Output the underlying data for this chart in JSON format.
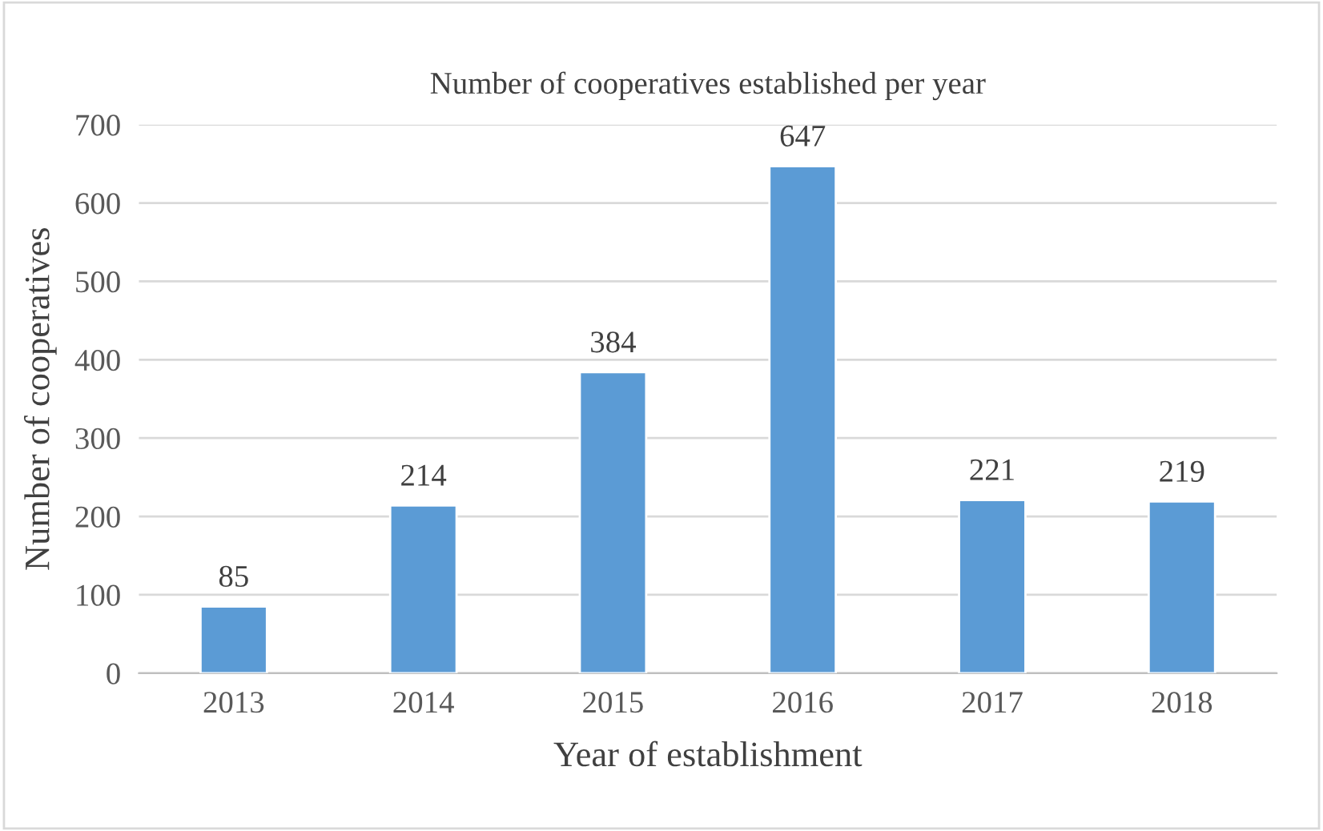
{
  "chart_data": {
    "type": "bar",
    "title": "Number of cooperatives established per year",
    "xlabel": "Year of establishment",
    "ylabel": "Number of cooperatives",
    "categories": [
      "2013",
      "2014",
      "2015",
      "2016",
      "2017",
      "2018"
    ],
    "values": [
      85,
      214,
      384,
      647,
      221,
      219
    ],
    "color": "#5b9bd5",
    "data_labels": true,
    "ylim": [
      0,
      700
    ],
    "yticks": [
      0,
      100,
      200,
      300,
      400,
      500,
      600,
      700
    ],
    "grid": "y"
  }
}
